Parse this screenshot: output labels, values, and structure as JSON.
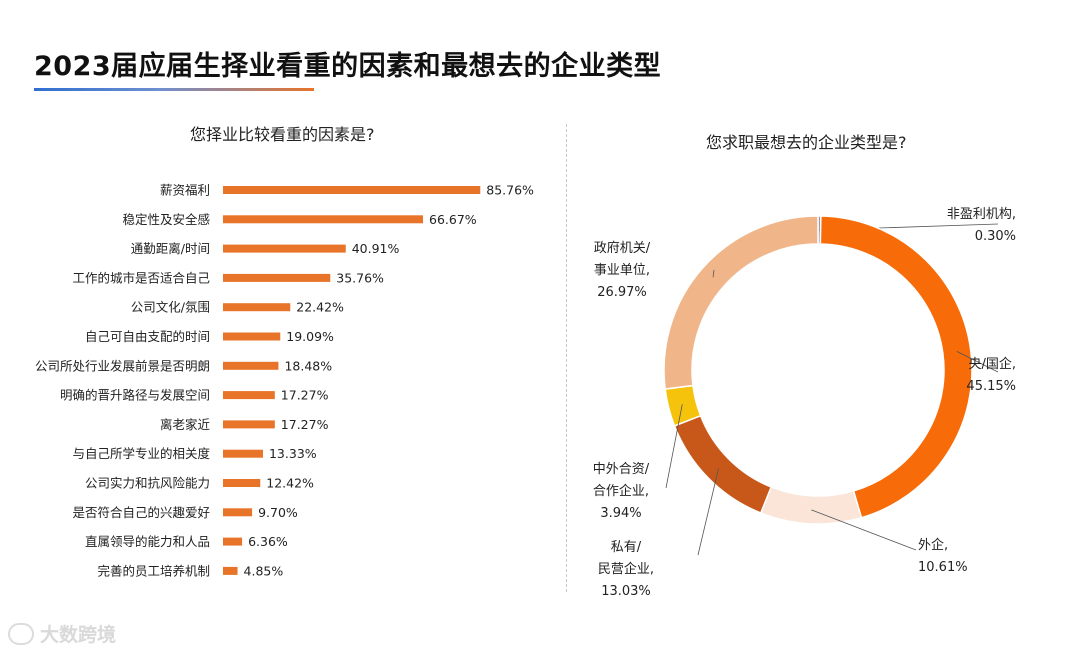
{
  "title": "2023届应届生择业看重的因素和最想去的企业类型",
  "watermark": "大数跨境",
  "chart_data": [
    {
      "type": "bar",
      "orientation": "horizontal",
      "title": "您择业比较看重的因素是?",
      "categories": [
        "薪资福利",
        "稳定性及安全感",
        "通勤距离/时间",
        "工作的城市是否适合自己",
        "公司文化/氛围",
        "自己可自由支配的时间",
        "公司所处行业发展前景是否明朗",
        "明确的晋升路径与发展空间",
        "离老家近",
        "与自己所学专业的相关度",
        "公司实力和抗风险能力",
        "是否符合自己的兴趣爱好",
        "直属领导的能力和人品",
        "完善的员工培养机制"
      ],
      "values": [
        85.76,
        66.67,
        40.91,
        35.76,
        22.42,
        19.09,
        18.48,
        17.27,
        17.27,
        13.33,
        12.42,
        9.7,
        6.36,
        4.85
      ],
      "value_labels": [
        "85.76%",
        "66.67%",
        "40.91%",
        "35.76%",
        "22.42%",
        "19.09%",
        "18.48%",
        "17.27%",
        "17.27%",
        "13.33%",
        "12.42%",
        "9.70%",
        "6.36%",
        "4.85%"
      ],
      "unit": "%",
      "color": "#e8742a",
      "xlim": [
        0,
        100
      ]
    },
    {
      "type": "pie",
      "variant": "donut",
      "title": "您求职最想去的企业类型是?",
      "slices": [
        {
          "name": "非盈利机构,",
          "value": 0.3,
          "label": "0.30%",
          "color": "#8f9bb3"
        },
        {
          "name": "央/国企,",
          "value": 45.15,
          "label": "45.15%",
          "color": "#f76b08"
        },
        {
          "name": "外企,",
          "value": 10.61,
          "label": "10.61%",
          "color": "#fbe4d8"
        },
        {
          "name": "私有/民营企业,",
          "value": 13.03,
          "label": "13.03%",
          "color": "#c8581a"
        },
        {
          "name": "中外合资/合作企业,",
          "value": 3.94,
          "label": "3.94%",
          "color": "#f5c20c"
        },
        {
          "name": "政府机关/事业单位,",
          "value": 26.97,
          "label": "26.97%",
          "color": "#f1b58a"
        }
      ]
    }
  ]
}
